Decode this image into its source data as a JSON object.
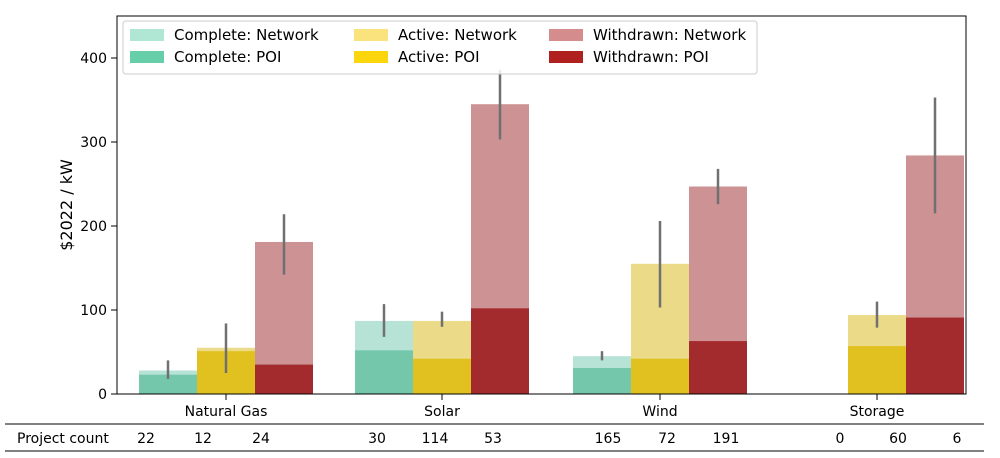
{
  "chart_data": {
    "type": "bar",
    "ylabel": "$2022 / kW",
    "ylim": [
      0,
      450
    ],
    "yticks": [
      0,
      100,
      200,
      300,
      400
    ],
    "categories": [
      "Natural Gas",
      "Solar",
      "Wind",
      "Storage"
    ],
    "groups": [
      "Complete",
      "Active",
      "Withdrawn"
    ],
    "series": [
      {
        "name": "Complete: Network",
        "group": "Complete",
        "layer": "Network",
        "values": [
          28,
          87,
          45,
          0
        ],
        "error": [
          [
            18,
            40
          ],
          [
            68,
            107
          ],
          [
            40,
            51
          ],
          null
        ],
        "color": "#b7e3d6"
      },
      {
        "name": "Complete: POI",
        "group": "Complete",
        "layer": "POI",
        "values": [
          23,
          52,
          31,
          0
        ],
        "color": "#75c7ac"
      },
      {
        "name": "Active: Network",
        "group": "Active",
        "layer": "Network",
        "values": [
          55,
          87,
          155,
          94
        ],
        "error": [
          [
            25,
            84
          ],
          [
            80,
            98
          ],
          [
            103,
            206
          ],
          [
            79,
            110
          ]
        ],
        "color": "#ebdb88"
      },
      {
        "name": "Active: POI",
        "group": "Active",
        "layer": "POI",
        "values": [
          51,
          42,
          42,
          57
        ],
        "color": "#e0c11f"
      },
      {
        "name": "Withdrawn: Network",
        "group": "Withdrawn",
        "layer": "Network",
        "values": [
          181,
          345,
          247,
          284
        ],
        "error": [
          [
            142,
            214
          ],
          [
            303,
            386
          ],
          [
            226,
            268
          ],
          [
            215,
            353
          ]
        ],
        "color": "#cd9394"
      },
      {
        "name": "Withdrawn: POI",
        "group": "Withdrawn",
        "layer": "POI",
        "values": [
          35,
          102,
          63,
          91
        ],
        "color": "#a32b2e"
      }
    ],
    "legend": {
      "placement": "top",
      "columns": [
        [
          {
            "label": "Complete: Network",
            "color": "#b0e6d4"
          },
          {
            "label": "Complete: POI",
            "color": "#66cfa9"
          }
        ],
        [
          {
            "label": "Active: Network",
            "color": "#fae37c"
          },
          {
            "label": "Active: POI",
            "color": "#fcd60d"
          }
        ],
        [
          {
            "label": "Withdrawn: Network",
            "color": "#d48c8d"
          },
          {
            "label": "Withdrawn: POI",
            "color": "#b0201e"
          }
        ]
      ]
    },
    "project_count": {
      "label": "Project count",
      "values": [
        [
          "22",
          "12",
          "24"
        ],
        [
          "30",
          "114",
          "53"
        ],
        [
          "165",
          "72",
          "191"
        ],
        [
          "0",
          "60",
          "6"
        ]
      ]
    },
    "errorbar_color": "#707070",
    "grid": false
  }
}
